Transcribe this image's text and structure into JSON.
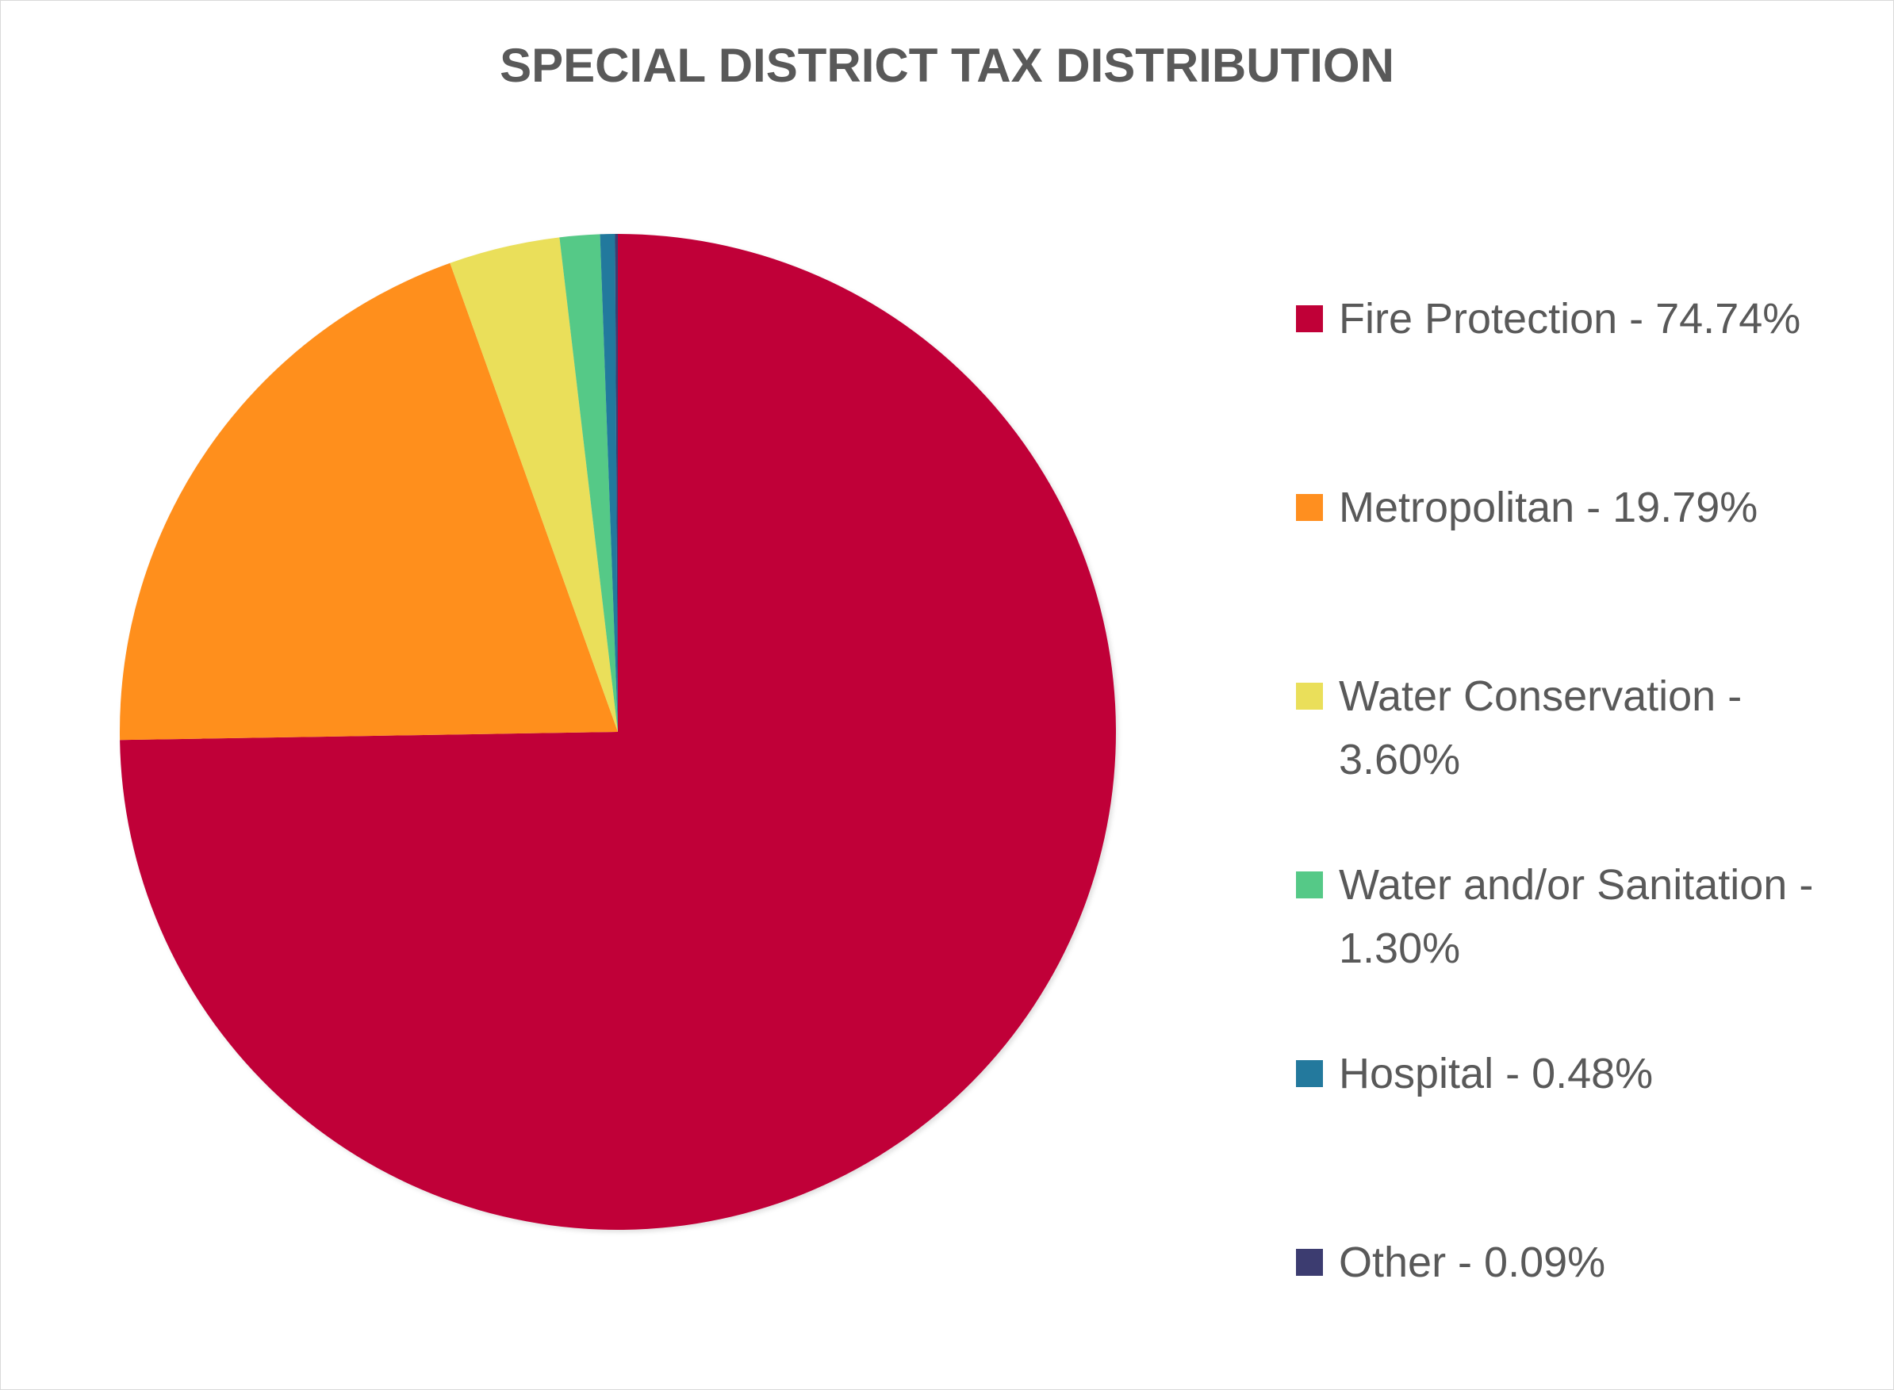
{
  "chart_data": {
    "type": "pie",
    "title": "SPECIAL DISTRICT TAX DISTRIBUTION",
    "slices": [
      {
        "label": "Fire Protection",
        "value": 74.74,
        "legend": "Fire Protection - 74.74%",
        "color": "#C00037"
      },
      {
        "label": "Metropolitan",
        "value": 19.79,
        "legend": "Metropolitan - 19.79%",
        "color": "#FF8F1F"
      },
      {
        "label": "Water Conservation",
        "value": 3.6,
        "legend": "Water Conservation - 3.60%",
        "color": "#EADF5A"
      },
      {
        "label": "Water and/or Sanitation",
        "value": 1.3,
        "legend": "Water and/or Sanitation - 1.30%",
        "color": "#55C987"
      },
      {
        "label": "Hospital",
        "value": 0.48,
        "legend": "Hospital - 0.48%",
        "color": "#23799D"
      },
      {
        "label": "Other",
        "value": 0.09,
        "legend": "Other - 0.09%",
        "color": "#3C3C70"
      }
    ],
    "legend_position": "right"
  }
}
